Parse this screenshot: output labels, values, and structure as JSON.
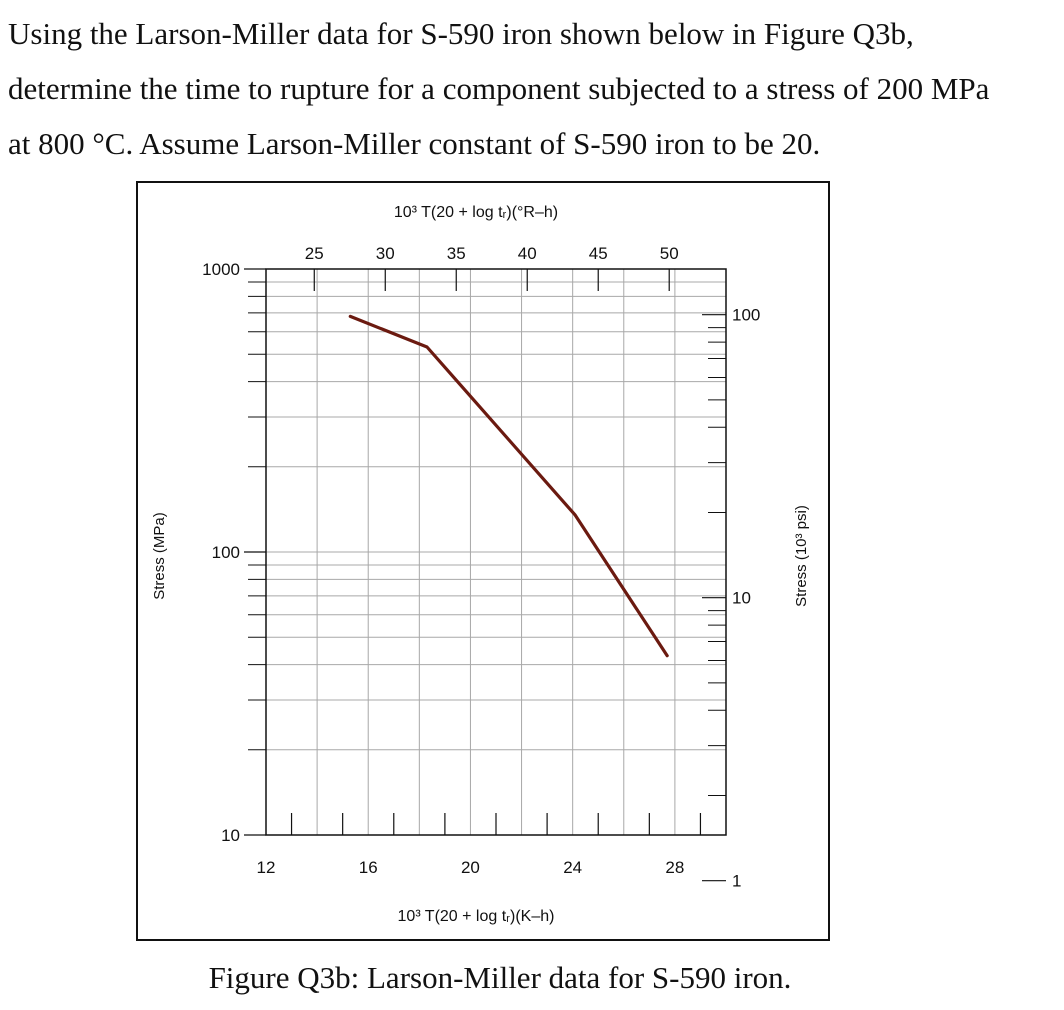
{
  "question": {
    "line1": "Using the Larson-Miller data for S-590 iron shown below in Figure Q3b,",
    "line2": "determine the time to rupture for a component subjected to a stress of 200 MPa",
    "line3": "at 800 °C. Assume Larson-Miller constant of S-590 iron to be 20."
  },
  "caption": "Figure Q3b: Larson-Miller data for S-590 iron.",
  "chart_data": {
    "type": "line",
    "title": "",
    "xlabel": "10³ T(20 + log tᵣ)(K–h)",
    "x2label": "10³ T(20 + log tᵣ)(°R–h)",
    "ylabel": "Stress (MPa)",
    "y2label": "Stress (10³ psi)",
    "xlim": [
      12,
      30
    ],
    "x_ticks": [
      "12",
      "16",
      "20",
      "24",
      "28"
    ],
    "x2lim": [
      21.6,
      54
    ],
    "x2_ticks": [
      "25",
      "30",
      "35",
      "40",
      "45",
      "50"
    ],
    "ylim": [
      10,
      1000
    ],
    "y_scale": "log",
    "y_ticks": [
      "10",
      "100",
      "1000"
    ],
    "y2_ticks": [
      "1",
      "10",
      "100"
    ],
    "grid": true,
    "line_color": "#6b1a10",
    "series": [
      {
        "x": [
          15.3,
          18.3,
          24.1,
          27.7
        ],
        "y": [
          680,
          530,
          135,
          43
        ]
      }
    ]
  }
}
